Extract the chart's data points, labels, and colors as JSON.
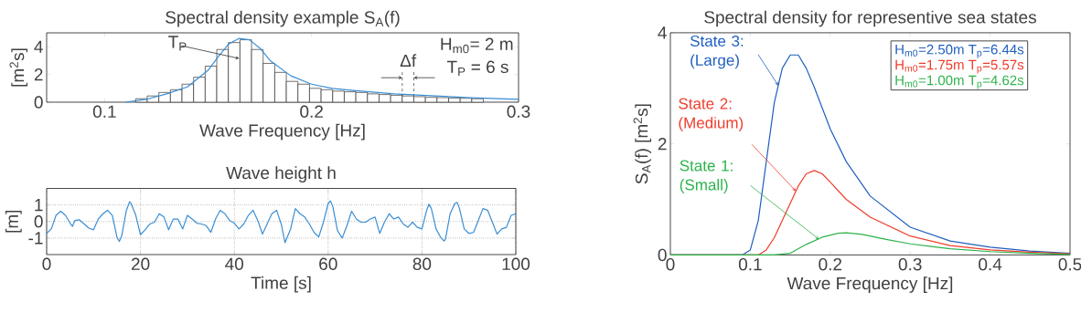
{
  "chart_data": [
    {
      "type": "histogram",
      "title": "Spectral density example S$_{A}$(f)",
      "xlabel": "Wave Frequency [Hz]",
      "ylabel": "[m$^{2}$s]",
      "color": "#333333",
      "bins": [
        0.115,
        0.1206,
        0.1262,
        0.1318,
        0.1374,
        0.143,
        0.1486,
        0.1542,
        0.1598,
        0.1654,
        0.171,
        0.1766,
        0.1822,
        0.1878,
        0.1934,
        0.199,
        0.2046,
        0.2102,
        0.2158,
        0.2214,
        0.227,
        0.2326,
        0.2382,
        0.2438,
        0.2494,
        0.255,
        0.2606,
        0.2662,
        0.2718,
        0.2774,
        0.283
      ],
      "values": [
        0.25,
        0.45,
        0.7,
        0.9,
        1.3,
        1.8,
        2.6,
        3.8,
        4.3,
        4.5,
        3.8,
        2.8,
        2.15,
        1.5,
        1.3,
        1.0,
        0.9,
        0.8,
        0.75,
        0.7,
        0.6,
        0.55,
        0.5,
        0.45,
        0.4,
        0.35,
        0.33,
        0.3,
        0.28,
        0.25
      ],
      "series": [
        {
          "type": "line",
          "color": "#3a8ed4",
          "x": [
            0.11,
            0.12,
            0.13,
            0.14,
            0.15,
            0.155,
            0.16,
            0.165,
            0.17,
            0.175,
            0.18,
            0.19,
            0.2,
            0.21,
            0.22,
            0.24,
            0.26,
            0.28,
            0.3
          ],
          "values": [
            0,
            0.2,
            0.6,
            1.1,
            2.3,
            3.3,
            4.2,
            4.6,
            4.5,
            3.9,
            3.0,
            1.9,
            1.3,
            1.0,
            0.85,
            0.6,
            0.45,
            0.3,
            0.2
          ]
        }
      ],
      "xlim": [
        0.072,
        0.3
      ],
      "ylim": [
        0,
        5
      ],
      "xticks": [
        0.1,
        0.2,
        0.3
      ],
      "yticks": [
        0,
        2,
        4
      ],
      "annotations": [
        {
          "text": "T$_{P}$",
          "x": 0.165,
          "y": 3.15
        },
        "H$_{m0}$= 2 m",
        "T$_{P}$ = 6 s",
        {
          "text": "Δf",
          "x": 0.2466,
          "y": 0.45
        }
      ]
    },
    {
      "type": "line",
      "title": "Wave height h",
      "xlabel": "Time [s]",
      "ylabel": "[m]",
      "color": "#3a8ed4",
      "x": [
        0,
        1,
        2,
        3,
        4,
        5,
        5.5,
        6,
        7,
        8,
        9,
        10,
        11,
        12,
        13,
        14,
        15,
        15.5,
        16,
        17,
        17.7,
        18,
        19,
        20,
        21,
        22,
        23,
        24,
        25,
        26,
        27,
        28,
        29,
        30,
        31,
        32,
        33,
        34,
        35,
        36,
        37,
        38,
        39,
        40,
        41,
        42,
        43,
        44,
        45,
        46,
        47,
        48,
        49,
        50,
        50.8,
        52,
        53,
        54,
        55,
        56,
        57,
        58,
        59,
        60,
        60.5,
        61,
        62,
        63,
        64,
        65,
        66,
        67,
        68,
        69,
        70,
        71,
        72,
        73,
        74,
        75,
        76,
        77,
        78,
        79,
        80,
        81,
        81.5,
        82,
        83,
        84,
        84.7,
        85,
        86,
        87,
        87.5,
        88,
        89,
        90,
        91,
        92,
        93,
        94,
        95,
        96,
        97,
        98,
        99,
        100
      ],
      "values": [
        -0.72,
        -0.45,
        0.37,
        0.62,
        0.37,
        -0.1,
        -0.3,
        0.06,
        0.1,
        -0.15,
        -0.4,
        -0.5,
        0.15,
        0.47,
        0.68,
        0.37,
        -0.97,
        -1.2,
        -0.87,
        0.68,
        1.2,
        1.09,
        0.37,
        -0.8,
        -0.5,
        -0.15,
        -0.04,
        0.47,
        0.27,
        -0.5,
        0.15,
        0.14,
        -0.45,
        0.37,
        0.15,
        -0.1,
        -0.15,
        -0.25,
        -0.66,
        0.15,
        0.68,
        0.47,
        0.06,
        -0.1,
        -0.45,
        -0.15,
        0.37,
        0.68,
        0.06,
        -0.76,
        -0.15,
        0.47,
        0.68,
        -0.15,
        -1.28,
        -0.45,
        0.78,
        0.47,
        0.27,
        -0.15,
        -0.66,
        -0.93,
        -0.04,
        1.09,
        1.25,
        0.89,
        -0.56,
        -1.0,
        -0.25,
        0.62,
        0.15,
        -0.04,
        -0.04,
        0.15,
        0.27,
        -0.72,
        -0.04,
        0.47,
        0.15,
        0.27,
        -0.15,
        -0.35,
        -0.04,
        -0.35,
        -0.45,
        0.68,
        1.05,
        0.78,
        -0.45,
        -0.97,
        -1.18,
        -1.07,
        0.47,
        1.09,
        1.15,
        0.78,
        -0.45,
        -0.72,
        -0.66,
        0.06,
        0.78,
        0.68,
        -0.04,
        -0.76,
        -0.45,
        -0.35,
        0.37,
        0.47
      ],
      "xlim": [
        0,
        100
      ],
      "ylim": [
        -2,
        2
      ],
      "xticks": [
        0,
        20,
        40,
        60,
        80,
        100
      ],
      "yticks": [
        -1,
        0,
        1
      ],
      "grid": true
    },
    {
      "type": "line",
      "title": "Spectral density for representive sea states",
      "xlabel": "Wave Frequency [Hz]",
      "ylabel": "S$_{A}$(f)  [m$^{2}$s]",
      "legend": "top right",
      "series": [
        {
          "name": "H$_{m0}$=2.50m T$_{p}$=6.44s",
          "color": "#1f5fbf",
          "x": [
            0,
            0.09,
            0.1,
            0.11,
            0.12,
            0.13,
            0.14,
            0.15,
            0.16,
            0.17,
            0.18,
            0.2,
            0.22,
            0.25,
            0.3,
            0.35,
            0.4,
            0.45,
            0.5
          ],
          "values": [
            0,
            0,
            0.09,
            0.62,
            1.68,
            2.74,
            3.36,
            3.6,
            3.6,
            3.36,
            3.02,
            2.27,
            1.68,
            1.06,
            0.5,
            0.25,
            0.14,
            0.07,
            0.03
          ]
        },
        {
          "name": "H$_{m0}$=1.75m T$_{p}$=5.57s",
          "color": "#f03c2c",
          "x": [
            0,
            0.11,
            0.12,
            0.13,
            0.14,
            0.15,
            0.16,
            0.17,
            0.18,
            0.19,
            0.2,
            0.22,
            0.25,
            0.3,
            0.35,
            0.4,
            0.45,
            0.5
          ],
          "values": [
            0,
            0,
            0.09,
            0.31,
            0.62,
            0.93,
            1.24,
            1.46,
            1.52,
            1.46,
            1.31,
            1.0,
            0.68,
            0.34,
            0.17,
            0.09,
            0.05,
            0.02
          ]
        },
        {
          "name": "H$_{m0}$=1.00m T$_{p}$=4.62s",
          "color": "#2cb34a",
          "x": [
            0,
            0.13,
            0.15,
            0.17,
            0.19,
            0.21,
            0.22,
            0.24,
            0.27,
            0.3,
            0.35,
            0.4,
            0.45,
            0.5
          ],
          "values": [
            0,
            0,
            0.03,
            0.19,
            0.32,
            0.39,
            0.4,
            0.37,
            0.28,
            0.2,
            0.11,
            0.06,
            0.03,
            0.01
          ]
        }
      ],
      "annotations": [
        {
          "text": "State 3: (Large)",
          "x": 0.135,
          "y": 3.05
        },
        {
          "text": "State 2: (Medium)",
          "x": 0.157,
          "y": 1.15
        },
        {
          "text": "State 1: (Small)",
          "x": 0.186,
          "y": 0.28
        }
      ],
      "xlim": [
        0,
        0.5
      ],
      "ylim": [
        0,
        4
      ],
      "xticks": [
        0,
        0.1,
        0.2,
        0.3,
        0.4,
        0.5
      ],
      "yticks": [
        0,
        2,
        4
      ]
    }
  ]
}
